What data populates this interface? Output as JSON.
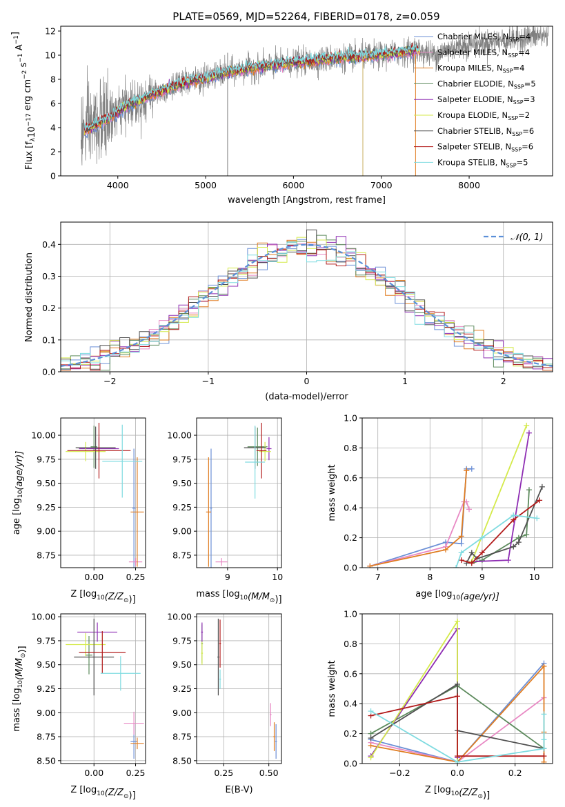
{
  "figure": {
    "title": "PLATE=0569, MJD=52264, FIBERID=0178, z=0.059"
  },
  "colors": {
    "Chabrier MILES": "#6b8fd6",
    "Salpeter MILES": "#e889c4",
    "Kroupa MILES": "#e07d22",
    "Chabrier ELODIE": "#5c8a5c",
    "Salpeter ELODIE": "#8e2db3",
    "Kroupa ELODIE": "#d4ea4a",
    "Chabrier STELIB": "#505050",
    "Salpeter STELIB": "#b21a1a",
    "Kroupa STELIB": "#7fdbe0",
    "data": "#7f7f7f",
    "normal": "#5b8fd8"
  },
  "chart_data": [
    {
      "id": "spectrum",
      "type": "line",
      "title": "PLATE=0569, MJD=52264, FIBERID=0178, z=0.059",
      "xlabel": "wavelength [Angstrom, rest frame]",
      "ylabel_parts": [
        "Flux [f",
        "λ",
        "10",
        "−17",
        " erg cm",
        "−2",
        " s",
        "−1",
        " A",
        "−1",
        "]"
      ],
      "xlim": [
        3350,
        8950
      ],
      "ylim": [
        0,
        12.4
      ],
      "xticks": [
        4000,
        5000,
        6000,
        7000,
        8000
      ],
      "yticks": [
        0,
        2,
        4,
        6,
        8,
        10,
        12
      ],
      "legend_position": "right",
      "legend": [
        {
          "label": "Chabrier MILES, N",
          "sub": "SSP",
          "count": "=4"
        },
        {
          "label": "Salpeter MILES, N",
          "sub": "SSP",
          "count": "=4"
        },
        {
          "label": "Kroupa MILES, N",
          "sub": "SSP",
          "count": "=4"
        },
        {
          "label": "Chabrier ELODIE, N",
          "sub": "SSP",
          "count": "=5"
        },
        {
          "label": "Salpeter ELODIE, N",
          "sub": "SSP",
          "count": "=3"
        },
        {
          "label": "Kroupa ELODIE, N",
          "sub": "SSP",
          "count": "=2"
        },
        {
          "label": "Chabrier STELIB, N",
          "sub": "SSP",
          "count": "=6"
        },
        {
          "label": "Salpeter STELIB, N",
          "sub": "SSP",
          "count": "=6"
        },
        {
          "label": "Kroupa STELIB, N",
          "sub": "SSP",
          "count": "=5"
        }
      ],
      "continuum": {
        "x": [
          3600,
          3700,
          3800,
          3900,
          4000,
          4100,
          4200,
          4300,
          4400,
          4500,
          4600,
          4700,
          4800,
          4900,
          5000,
          5200,
          5400,
          5600,
          5800,
          6000,
          6200,
          6400,
          6600,
          6800,
          7000,
          7200,
          7400,
          7600,
          7800,
          8000,
          8200,
          8400,
          8600,
          8800
        ],
        "y": [
          3.6,
          4.0,
          4.4,
          4.8,
          5.3,
          5.8,
          6.1,
          6.4,
          6.8,
          7.0,
          7.3,
          7.6,
          7.8,
          8.0,
          8.1,
          8.5,
          8.8,
          9.0,
          9.2,
          9.4,
          9.5,
          9.7,
          9.8,
          9.9,
          10.0,
          10.2,
          10.4,
          10.0,
          10.6,
          10.9,
          11.0,
          11.2,
          11.4,
          11.6
        ]
      }
    },
    {
      "id": "residuals",
      "type": "step",
      "xlabel": "(data-model)/error",
      "ylabel": "Normed distribution",
      "xlim": [
        -2.5,
        2.5
      ],
      "ylim": [
        0,
        0.47
      ],
      "xticks": [
        -2,
        -1,
        0,
        1,
        2
      ],
      "yticks": [
        0.0,
        0.1,
        0.2,
        0.3,
        0.4
      ],
      "legend_position": "top-right",
      "legend": "𝒩(0, 1)",
      "bin_width": 0.1
    },
    {
      "id": "age-vs-Z",
      "type": "errorbar",
      "xlabel_parts": [
        "Z [log",
        "10",
        "(Z/Z",
        "⊙",
        ")]"
      ],
      "ylabel_parts": [
        "age  [log",
        "10",
        "(age/yr)]"
      ],
      "xlim": [
        -0.2,
        0.31
      ],
      "ylim": [
        8.62,
        10.18
      ],
      "xticks": [
        0.0,
        0.25
      ],
      "yticks": [
        8.75,
        9.0,
        9.25,
        9.5,
        9.75,
        10.0
      ],
      "series": [
        {
          "name": "Chabrier MILES",
          "x": 0.24,
          "xerr": 0.01,
          "y": 9.24,
          "yerr": 0.62
        },
        {
          "name": "Salpeter MILES",
          "x": 0.25,
          "xerr": 0.04,
          "y": 8.68,
          "yerr": 0.04
        },
        {
          "name": "Kroupa MILES",
          "x": 0.26,
          "xerr": 0.04,
          "y": 9.2,
          "yerr": 0.57
        },
        {
          "name": "Chabrier ELODIE",
          "x": 0.0,
          "xerr": 0.02,
          "y": 9.88,
          "yerr": 0.22
        },
        {
          "name": "Salpeter ELODIE",
          "x": 0.03,
          "xerr": 0.12,
          "y": 9.86,
          "yerr": 0.12
        },
        {
          "name": "Kroupa ELODIE",
          "x": -0.05,
          "xerr": 0.12,
          "y": 9.83,
          "yerr": 0.1
        },
        {
          "name": "Chabrier STELIB",
          "x": 0.01,
          "xerr": 0.12,
          "y": 9.87,
          "yerr": 0.22
        },
        {
          "name": "Salpeter STELIB",
          "x": 0.03,
          "xerr": 0.19,
          "y": 9.84,
          "yerr": 0.29
        },
        {
          "name": "Kroupa STELIB",
          "x": 0.17,
          "xerr": 0.12,
          "y": 9.73,
          "yerr": 0.38
        }
      ]
    },
    {
      "id": "age-vs-mass",
      "type": "errorbar",
      "xlabel_parts": [
        "mass [log",
        "10",
        "(M/M",
        "⊙",
        ")]"
      ],
      "xlim": [
        8.38,
        10.08
      ],
      "ylim": [
        8.62,
        10.18
      ],
      "xticks": [
        9,
        10
      ],
      "yticks": [
        8.75,
        9.0,
        9.25,
        9.5,
        9.75,
        10.0
      ],
      "series": [
        {
          "name": "Chabrier MILES",
          "x": 8.67,
          "xerr": 0.02,
          "y": 9.24,
          "yerr": 0.62
        },
        {
          "name": "Salpeter MILES",
          "x": 8.88,
          "xerr": 0.12,
          "y": 8.68,
          "yerr": 0.04
        },
        {
          "name": "Kroupa MILES",
          "x": 8.62,
          "xerr": 0.05,
          "y": 9.2,
          "yerr": 0.57
        },
        {
          "name": "Chabrier ELODIE",
          "x": 9.6,
          "xerr": 0.2,
          "y": 9.88,
          "yerr": 0.2
        },
        {
          "name": "Salpeter ELODIE",
          "x": 9.83,
          "xerr": 0.05,
          "y": 9.86,
          "yerr": 0.12
        },
        {
          "name": "Kroupa ELODIE",
          "x": 9.75,
          "xerr": 0.12,
          "y": 9.83,
          "yerr": 0.1
        },
        {
          "name": "Chabrier STELIB",
          "x": 9.55,
          "xerr": 0.22,
          "y": 9.87,
          "yerr": 0.22
        },
        {
          "name": "Salpeter STELIB",
          "x": 9.68,
          "xerr": 0.1,
          "y": 9.84,
          "yerr": 0.29
        },
        {
          "name": "Kroupa STELIB",
          "x": 9.55,
          "xerr": 0.2,
          "y": 9.72,
          "yerr": 0.38
        }
      ]
    },
    {
      "id": "weight-vs-age",
      "type": "line",
      "xlabel_parts": [
        "age  [log",
        "10",
        "(age/yr)]"
      ],
      "ylabel": "mass weight",
      "xlim": [
        6.7,
        10.35
      ],
      "ylim": [
        0,
        1.0
      ],
      "xticks": [
        7,
        8,
        9,
        10
      ],
      "yticks": [
        0.0,
        0.2,
        0.4,
        0.6,
        0.8,
        1.0
      ],
      "series": [
        {
          "name": "Chabrier MILES",
          "x": [
            6.85,
            8.3,
            8.6,
            8.7,
            8.8
          ],
          "y": [
            0.01,
            0.17,
            0.16,
            0.66,
            0.66
          ]
        },
        {
          "name": "Salpeter MILES",
          "x": [
            6.85,
            8.3,
            8.65,
            8.7,
            8.75
          ],
          "y": [
            0.01,
            0.14,
            0.44,
            0.44,
            0.39
          ]
        },
        {
          "name": "Kroupa MILES",
          "x": [
            6.85,
            8.3,
            8.6,
            8.7,
            8.7
          ],
          "y": [
            0.01,
            0.12,
            0.21,
            0.65,
            0.65
          ]
        },
        {
          "name": "Chabrier ELODIE",
          "x": [
            8.8,
            9.0,
            9.7,
            9.85,
            9.9
          ],
          "y": [
            0.03,
            0.05,
            0.2,
            0.22,
            0.52
          ]
        },
        {
          "name": "Salpeter ELODIE",
          "x": [
            8.8,
            9.5,
            9.9
          ],
          "y": [
            0.04,
            0.05,
            0.9
          ]
        },
        {
          "name": "Kroupa ELODIE",
          "x": [
            8.8,
            9.85
          ],
          "y": [
            0.04,
            0.95
          ]
        },
        {
          "name": "Chabrier STELIB",
          "x": [
            8.7,
            8.8,
            8.9,
            9.6,
            9.7,
            10.15
          ],
          "y": [
            0.03,
            0.1,
            0.06,
            0.14,
            0.17,
            0.54
          ]
        },
        {
          "name": "Salpeter STELIB",
          "x": [
            8.6,
            8.8,
            9.0,
            9.6,
            10.1
          ],
          "y": [
            0.05,
            0.03,
            0.1,
            0.32,
            0.45
          ]
        },
        {
          "name": "Kroupa STELIB",
          "x": [
            8.5,
            8.6,
            9.0,
            9.6,
            10.05
          ],
          "y": [
            0.0,
            0.1,
            0.2,
            0.35,
            0.33
          ]
        }
      ]
    },
    {
      "id": "mass-vs-Z",
      "type": "errorbar",
      "xlabel_parts": [
        "Z [log",
        "10",
        "(Z/Z",
        "⊙",
        ")]"
      ],
      "ylabel_parts": [
        "mass [log",
        "10",
        "(M/M",
        "⊙",
        ")]"
      ],
      "xlim": [
        -0.2,
        0.31
      ],
      "ylim": [
        8.47,
        10.03
      ],
      "xticks": [
        0.0,
        0.25
      ],
      "yticks": [
        8.5,
        8.75,
        9.0,
        9.25,
        9.5,
        9.75,
        10.0
      ],
      "series": [
        {
          "name": "Chabrier MILES",
          "x": 0.24,
          "xerr": 0.02,
          "y": 8.7,
          "yerr": 0.18
        },
        {
          "name": "Salpeter MILES",
          "x": 0.24,
          "xerr": 0.06,
          "y": 8.89,
          "yerr": 0.12
        },
        {
          "name": "Kroupa MILES",
          "x": 0.26,
          "xerr": 0.04,
          "y": 8.68,
          "yerr": 0.06
        },
        {
          "name": "Chabrier ELODIE",
          "x": -0.03,
          "xerr": 0.02,
          "y": 9.6,
          "yerr": 0.2
        },
        {
          "name": "Salpeter ELODIE",
          "x": 0.02,
          "xerr": 0.12,
          "y": 9.84,
          "yerr": 0.1
        },
        {
          "name": "Kroupa ELODIE",
          "x": -0.05,
          "xerr": 0.12,
          "y": 9.71,
          "yerr": 0.12
        },
        {
          "name": "Chabrier STELIB",
          "x": 0.0,
          "xerr": 0.12,
          "y": 9.58,
          "yerr": 0.4
        },
        {
          "name": "Salpeter STELIB",
          "x": 0.05,
          "xerr": 0.14,
          "y": 9.63,
          "yerr": 0.22
        },
        {
          "name": "Kroupa STELIB",
          "x": 0.16,
          "xerr": 0.12,
          "y": 9.41,
          "yerr": 0.18
        }
      ]
    },
    {
      "id": "mass-vs-EBV",
      "type": "errorbar",
      "xlabel": "E(B-V)",
      "xlim": [
        0.1,
        0.57
      ],
      "ylim": [
        8.47,
        10.03
      ],
      "xticks": [
        0.25,
        0.5
      ],
      "yticks": [
        8.5,
        8.75,
        9.0,
        9.25,
        9.5,
        9.75,
        10.0
      ],
      "series": [
        {
          "name": "Chabrier MILES",
          "x": 0.54,
          "xerr": 0.005,
          "y": 8.7,
          "yerr": 0.18
        },
        {
          "name": "Salpeter MILES",
          "x": 0.51,
          "xerr": 0.005,
          "y": 8.98,
          "yerr": 0.12
        },
        {
          "name": "Kroupa MILES",
          "x": 0.53,
          "xerr": 0.005,
          "y": 8.75,
          "yerr": 0.15
        },
        {
          "name": "Chabrier ELODIE",
          "x": 0.13,
          "xerr": 0.005,
          "y": 9.72,
          "yerr": 0.2
        },
        {
          "name": "Salpeter ELODIE",
          "x": 0.13,
          "xerr": 0.005,
          "y": 9.84,
          "yerr": 0.1
        },
        {
          "name": "Kroupa ELODIE",
          "x": 0.13,
          "xerr": 0.005,
          "y": 9.62,
          "yerr": 0.12
        },
        {
          "name": "Chabrier STELIB",
          "x": 0.22,
          "xerr": 0.005,
          "y": 9.58,
          "yerr": 0.4
        },
        {
          "name": "Salpeter STELIB",
          "x": 0.23,
          "xerr": 0.005,
          "y": 9.72,
          "yerr": 0.25
        },
        {
          "name": "Kroupa STELIB",
          "x": 0.23,
          "xerr": 0.005,
          "y": 9.35,
          "yerr": 0.1
        }
      ]
    },
    {
      "id": "weight-vs-Z",
      "type": "line",
      "xlabel_parts": [
        "Z [log",
        "10",
        "(Z/Z",
        "⊙",
        ")]"
      ],
      "ylabel": "mass weight",
      "xlim": [
        -0.33,
        0.33
      ],
      "ylim": [
        0,
        1.0
      ],
      "xticks": [
        -0.2,
        0.0,
        0.2
      ],
      "yticks": [
        0.0,
        0.2,
        0.4,
        0.6,
        0.8,
        1.0
      ],
      "series": [
        {
          "name": "Chabrier MILES",
          "x": [
            -0.3,
            0.0,
            0.3
          ],
          "y": [
            0.16,
            0.01,
            0.67
          ]
        },
        {
          "name": "Salpeter MILES",
          "x": [
            -0.3,
            0.0,
            0.3
          ],
          "y": [
            0.14,
            0.01,
            0.44
          ]
        },
        {
          "name": "Kroupa MILES",
          "x": [
            -0.3,
            0.0,
            0.3,
            0.3,
            0.3
          ],
          "y": [
            0.12,
            0.01,
            0.65,
            0.21,
            0.01
          ]
        },
        {
          "name": "Chabrier ELODIE",
          "x": [
            -0.3,
            0.0,
            0.3
          ],
          "y": [
            0.2,
            0.52,
            0.1
          ]
        },
        {
          "name": "Salpeter ELODIE",
          "x": [
            -0.3,
            0.0,
            0.0
          ],
          "y": [
            0.05,
            0.9,
            0.04
          ]
        },
        {
          "name": "Kroupa ELODIE",
          "x": [
            -0.3,
            0.0,
            0.0
          ],
          "y": [
            0.04,
            0.95,
            0.01
          ]
        },
        {
          "name": "Chabrier STELIB",
          "x": [
            -0.3,
            0.0,
            0.0,
            0.3
          ],
          "y": [
            0.17,
            0.53,
            0.22,
            0.1
          ]
        },
        {
          "name": "Salpeter STELIB",
          "x": [
            -0.3,
            0.0,
            0.0,
            0.3
          ],
          "y": [
            0.32,
            0.45,
            0.05,
            0.05
          ]
        },
        {
          "name": "Kroupa STELIB",
          "x": [
            -0.3,
            0.0,
            0.3,
            0.3,
            0.3
          ],
          "y": [
            0.35,
            0.01,
            0.1,
            0.33,
            0.16
          ]
        }
      ]
    }
  ]
}
